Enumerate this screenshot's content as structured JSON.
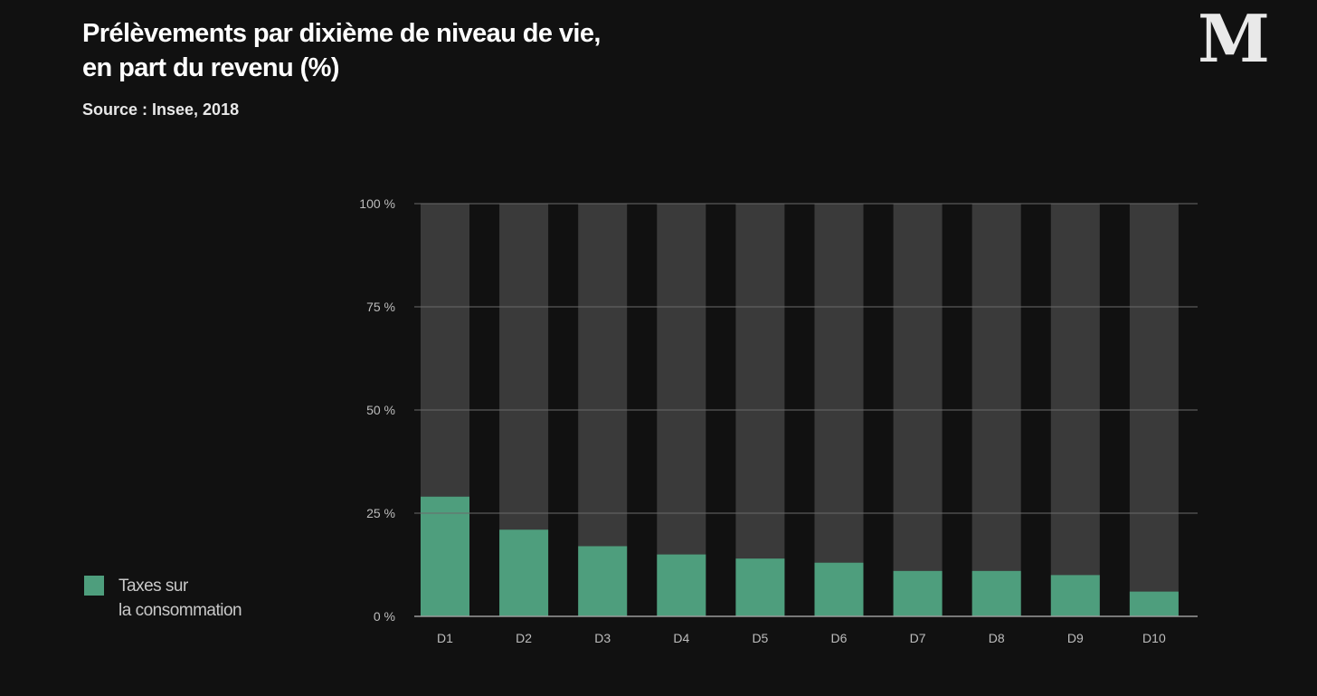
{
  "header": {
    "title_line1": "Prélèvements par dixième de niveau de vie,",
    "title_line2": "en part du revenu (%)",
    "source": "Source : Insee, 2018"
  },
  "logo": {
    "icon": "le-monde-logo",
    "text": "M"
  },
  "colors": {
    "background": "#111111",
    "bar_background": "#3a3a3a",
    "bar_fill": "#4e9e7d",
    "gridline": "#6a6a6a"
  },
  "chart_data": {
    "type": "bar",
    "categories": [
      "D1",
      "D2",
      "D3",
      "D4",
      "D5",
      "D6",
      "D7",
      "D8",
      "D9",
      "D10"
    ],
    "series": [
      {
        "name": "Taxes sur la consommation",
        "values": [
          29,
          21,
          17,
          15,
          14,
          13,
          11,
          11,
          10,
          6
        ]
      }
    ],
    "background_total": 100,
    "ylim": [
      0,
      100
    ],
    "yticks": [
      0,
      25,
      50,
      75,
      100
    ],
    "ytick_labels": [
      "0 %",
      "25 %",
      "50 %",
      "75 %",
      "100 %"
    ],
    "title": "Prélèvements par dixième de niveau de vie, en part du revenu (%)",
    "xlabel": "",
    "ylabel": "",
    "grid": true,
    "legend_position": "bottom-left"
  },
  "legend": {
    "line1": "Taxes sur",
    "line2": "la consommation"
  }
}
